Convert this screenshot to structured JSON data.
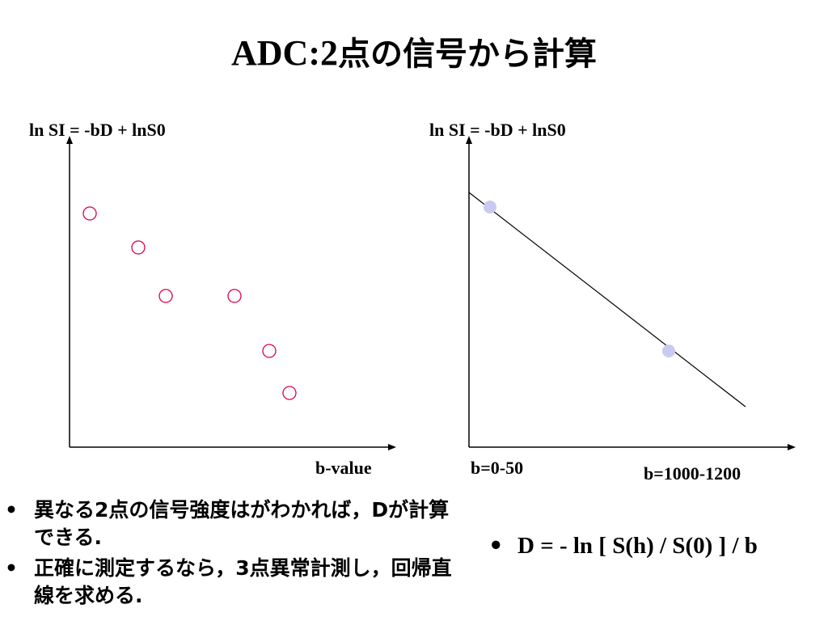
{
  "slide": {
    "title_latin": "ADC:2",
    "title_jp": "点の信号から計算"
  },
  "left_plot": {
    "ylabel": "ln SI = -bD + lnS0",
    "xlabel": "b-value",
    "marker_color": "#d9004c"
  },
  "right_plot": {
    "ylabel": "ln SI = -bD + lnS0",
    "xlabel_low": "b=0-50",
    "xlabel_high": "b=1000-1200",
    "point_color": "#c8caf2"
  },
  "bullets_left": [
    "異なる2点の信号強度はがわかれば，Dが計算できる.",
    "正確に測定するなら，3点異常計測し，回帰直線を求める."
  ],
  "bullet_right": "D = - ln [ S(h) / S(0) ] / b"
}
